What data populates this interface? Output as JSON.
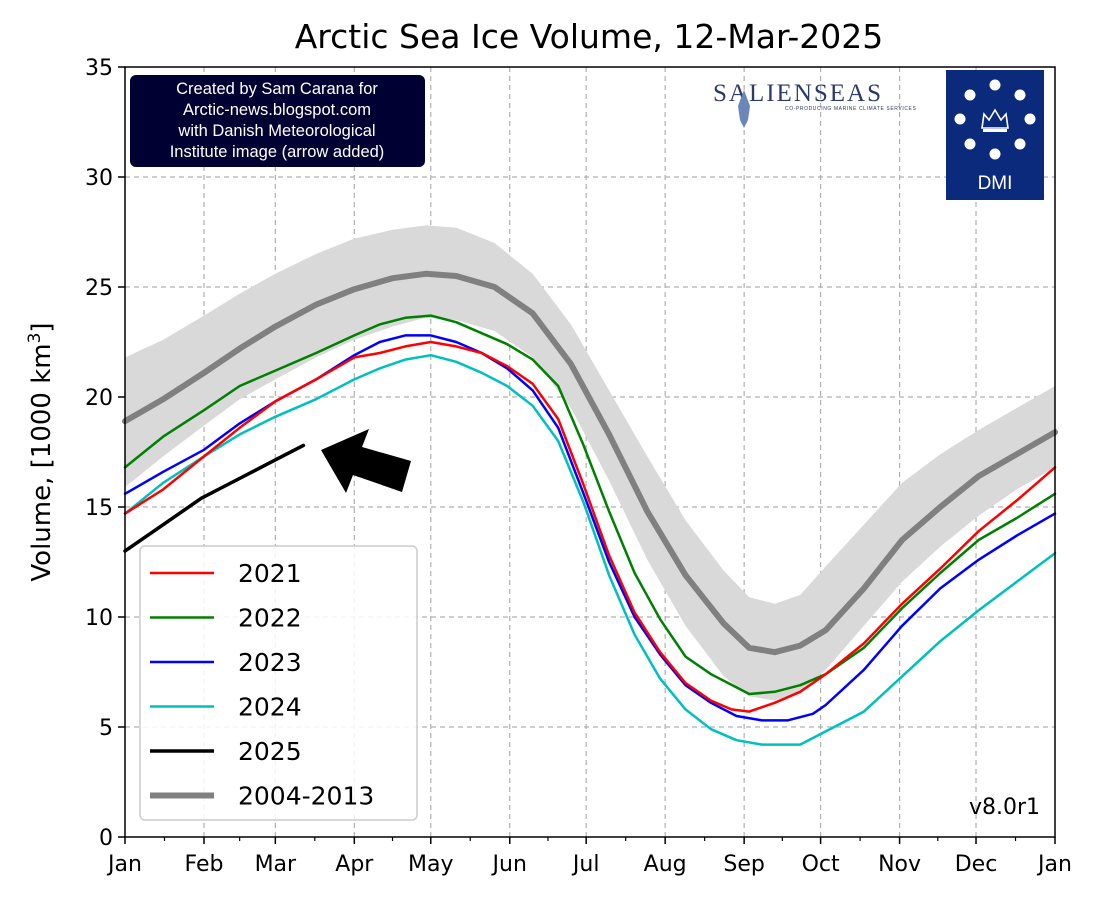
{
  "chart_data": {
    "type": "line",
    "title": "Arctic Sea Ice Volume, 12-Mar-2025",
    "ylabel": "Volume, [1000 km",
    "ylabel_sup": "3",
    "ylabel_end": "]",
    "xlabel": "",
    "ylim": [
      0,
      35
    ],
    "xlim": [
      0,
      365
    ],
    "grid": true,
    "y_ticks": [
      0,
      5,
      10,
      15,
      20,
      25,
      30,
      35
    ],
    "x_ticks": [
      {
        "label": "Jan",
        "day": 0
      },
      {
        "label": "Feb",
        "day": 31
      },
      {
        "label": "Mar",
        "day": 59
      },
      {
        "label": "Apr",
        "day": 90
      },
      {
        "label": "May",
        "day": 120
      },
      {
        "label": "Jun",
        "day": 151
      },
      {
        "label": "Jul",
        "day": 181
      },
      {
        "label": "Aug",
        "day": 212
      },
      {
        "label": "Sep",
        "day": 243
      },
      {
        "label": "Oct",
        "day": 273
      },
      {
        "label": "Nov",
        "day": 304
      },
      {
        "label": "Dec",
        "day": 334
      },
      {
        "label": "Jan",
        "day": 365
      }
    ],
    "band": {
      "name": "2004-2013 range",
      "color": "#d9d9d9",
      "x": [
        0,
        15,
        31,
        45,
        59,
        75,
        90,
        105,
        118,
        130,
        145,
        160,
        175,
        190,
        205,
        220,
        235,
        245,
        255,
        265,
        275,
        290,
        305,
        320,
        335,
        350,
        365
      ],
      "upper": [
        21.8,
        22.6,
        23.7,
        24.7,
        25.6,
        26.5,
        27.2,
        27.6,
        27.8,
        27.7,
        27.0,
        25.6,
        23.3,
        20.3,
        17.3,
        14.4,
        12.1,
        10.9,
        10.6,
        11.0,
        12.3,
        14.2,
        16.1,
        17.4,
        18.5,
        19.5,
        20.5
      ],
      "lower": [
        15.9,
        17.3,
        18.7,
        19.9,
        20.8,
        21.8,
        22.6,
        23.2,
        23.6,
        23.5,
        23.0,
        21.8,
        19.5,
        16.2,
        12.6,
        9.6,
        7.3,
        6.4,
        6.2,
        6.6,
        7.6,
        9.6,
        11.6,
        13.2,
        14.6,
        15.8,
        16.8
      ]
    },
    "series": [
      {
        "name": "2021",
        "color": "#ff0000",
        "width": 2.5,
        "x": [
          0,
          15,
          31,
          45,
          59,
          75,
          90,
          100,
          110,
          120,
          130,
          140,
          150,
          160,
          170,
          180,
          190,
          200,
          210,
          220,
          230,
          238,
          245,
          255,
          265,
          275,
          290,
          305,
          320,
          335,
          350,
          365
        ],
        "values": [
          14.7,
          15.8,
          17.3,
          18.6,
          19.8,
          20.8,
          21.8,
          22.0,
          22.3,
          22.5,
          22.3,
          22.0,
          21.4,
          20.6,
          19.0,
          16.0,
          12.8,
          10.2,
          8.4,
          7.0,
          6.2,
          5.8,
          5.7,
          6.1,
          6.6,
          7.4,
          8.8,
          10.6,
          12.2,
          13.9,
          15.3,
          16.8
        ]
      },
      {
        "name": "2022",
        "color": "#008000",
        "width": 2.5,
        "x": [
          0,
          15,
          31,
          45,
          59,
          75,
          90,
          100,
          110,
          120,
          130,
          140,
          150,
          160,
          170,
          180,
          190,
          200,
          210,
          220,
          230,
          240,
          245,
          255,
          265,
          275,
          290,
          305,
          320,
          335,
          350,
          365
        ],
        "values": [
          16.8,
          18.2,
          19.4,
          20.5,
          21.2,
          22.0,
          22.8,
          23.3,
          23.6,
          23.7,
          23.4,
          22.9,
          22.4,
          21.7,
          20.5,
          17.8,
          14.8,
          12.0,
          9.9,
          8.2,
          7.4,
          6.8,
          6.5,
          6.6,
          6.9,
          7.4,
          8.6,
          10.4,
          12.0,
          13.5,
          14.5,
          15.6
        ]
      },
      {
        "name": "2023",
        "color": "#0000ff",
        "width": 2.5,
        "x": [
          0,
          15,
          31,
          45,
          59,
          75,
          90,
          100,
          110,
          120,
          130,
          140,
          150,
          160,
          170,
          180,
          190,
          200,
          210,
          220,
          230,
          240,
          250,
          260,
          270,
          275,
          290,
          305,
          320,
          335,
          350,
          365
        ],
        "values": [
          15.6,
          16.6,
          17.6,
          18.8,
          19.8,
          20.8,
          21.9,
          22.5,
          22.8,
          22.8,
          22.5,
          22.0,
          21.3,
          20.3,
          18.6,
          15.6,
          12.5,
          10.0,
          8.3,
          6.9,
          6.1,
          5.5,
          5.3,
          5.3,
          5.6,
          6.0,
          7.6,
          9.6,
          11.3,
          12.6,
          13.7,
          14.7
        ]
      },
      {
        "name": "2024",
        "color": "#00bfbf",
        "width": 2.5,
        "x": [
          0,
          15,
          31,
          45,
          59,
          75,
          90,
          100,
          110,
          120,
          130,
          140,
          150,
          160,
          170,
          180,
          190,
          200,
          210,
          220,
          230,
          240,
          250,
          260,
          265,
          275,
          290,
          305,
          320,
          335,
          350,
          365
        ],
        "values": [
          14.7,
          16.1,
          17.3,
          18.3,
          19.1,
          19.9,
          20.8,
          21.3,
          21.7,
          21.9,
          21.6,
          21.1,
          20.5,
          19.6,
          18.0,
          15.2,
          11.9,
          9.2,
          7.2,
          5.8,
          4.9,
          4.4,
          4.2,
          4.2,
          4.2,
          4.8,
          5.7,
          7.3,
          8.9,
          10.3,
          11.6,
          12.9
        ]
      },
      {
        "name": "2025",
        "color": "#000000",
        "width": 3.5,
        "x": [
          0,
          10,
          20,
          30,
          40,
          50,
          60,
          70
        ],
        "values": [
          13.0,
          13.8,
          14.6,
          15.4,
          16.0,
          16.6,
          17.2,
          17.8
        ]
      },
      {
        "name": "2004-2013",
        "color": "#808080",
        "width": 6,
        "x": [
          0,
          15,
          31,
          45,
          59,
          75,
          90,
          105,
          118,
          130,
          145,
          160,
          175,
          190,
          205,
          220,
          235,
          245,
          255,
          265,
          275,
          290,
          305,
          320,
          335,
          350,
          365
        ],
        "values": [
          18.9,
          19.9,
          21.1,
          22.2,
          23.2,
          24.2,
          24.9,
          25.4,
          25.6,
          25.5,
          25.0,
          23.8,
          21.5,
          18.3,
          14.8,
          11.9,
          9.7,
          8.6,
          8.4,
          8.7,
          9.4,
          11.3,
          13.5,
          15.0,
          16.4,
          17.4,
          18.4
        ]
      }
    ],
    "legend": {
      "placement": "lower-left",
      "entries": [
        "2021",
        "2022",
        "2023",
        "2024",
        "2025",
        "2004-2013"
      ]
    },
    "annotations": {
      "credit_lines": [
        "Created by Sam Carana for",
        "Arctic-news.blogspot.com",
        "with Danish Meteorological",
        "Institute image (arrow added)"
      ],
      "version": "v8.0r1",
      "arrow": "points at 2025 line end"
    }
  },
  "logos": {
    "salienseas": "SALIENSEAS",
    "salienseas_sub": "CO-PRODUCING MARINE CLIMATE SERVICES",
    "dmi": "DMI",
    "dmi_color": "#0b2a7c"
  }
}
